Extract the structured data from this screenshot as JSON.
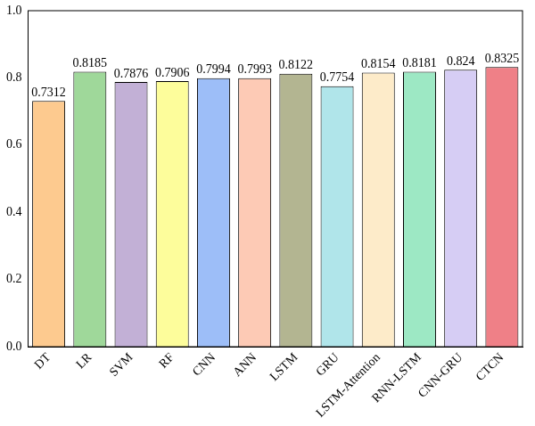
{
  "chart_data": {
    "type": "bar",
    "categories": [
      "DT",
      "LR",
      "SVM",
      "RF",
      "CNN",
      "ANN",
      "LSTM",
      "GRU",
      "LSTM-Attention",
      "RNN-LSTM",
      "CNN-GRU",
      "CTCN"
    ],
    "values": [
      0.7312,
      0.8185,
      0.7876,
      0.7906,
      0.7994,
      0.7993,
      0.8122,
      0.7754,
      0.8154,
      0.8181,
      0.824,
      0.8325
    ],
    "colors": [
      "#fdca8f",
      "#9fd89a",
      "#c2b0d6",
      "#fdfd9b",
      "#9dbef8",
      "#fdcab5",
      "#b3b591",
      "#b0e5ea",
      "#fdebc9",
      "#9de8c4",
      "#d6cdf4",
      "#ef8087"
    ],
    "ylim": [
      0,
      1
    ],
    "yticks": [
      {
        "value": 0,
        "label": "0.0"
      },
      0.2,
      0.4,
      0.6,
      0.8,
      {
        "value": 1,
        "label": "1.0"
      }
    ],
    "grid": false,
    "data_labels": true
  }
}
